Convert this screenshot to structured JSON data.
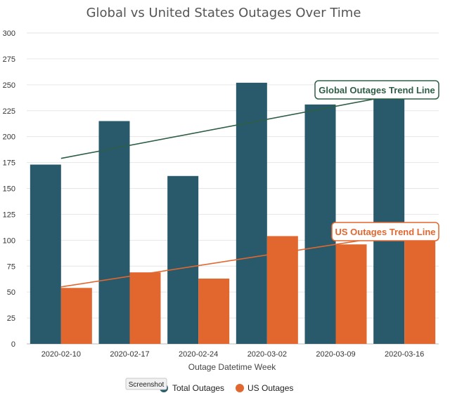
{
  "chart_data": {
    "type": "bar",
    "title": "Global vs United States Outages Over Time",
    "xlabel": "Outage Datetime Week",
    "ylabel": "",
    "ylim": [
      0,
      300
    ],
    "yticks": [
      0,
      25,
      50,
      75,
      100,
      125,
      150,
      175,
      200,
      225,
      250,
      275,
      300
    ],
    "categories": [
      "2020-02-10",
      "2020-02-17",
      "2020-02-24",
      "2020-03-02",
      "2020-03-09",
      "2020-03-16"
    ],
    "series": [
      {
        "name": "Total Outages",
        "color": "#285a6c",
        "values": [
          173,
          215,
          162,
          252,
          231,
          236
        ]
      },
      {
        "name": "US Outages",
        "color": "#e2672f",
        "values": [
          54,
          69,
          63,
          104,
          96,
          100
        ]
      }
    ],
    "grid": true,
    "legend_position": "bottom",
    "trend_lines": [
      {
        "label": "Global Outages Trend Line",
        "color": "#2e5e45",
        "from": {
          "category": "2020-02-10",
          "y": 179
        },
        "to": {
          "category": "2020-03-16",
          "y": 239
        }
      },
      {
        "label": "US Outages Trend Line",
        "color": "#e2672f",
        "from": {
          "category": "2020-02-10",
          "y": 55
        },
        "to": {
          "category": "2020-03-16",
          "y": 104
        }
      }
    ]
  },
  "tooltip": {
    "text": "Screenshot"
  }
}
